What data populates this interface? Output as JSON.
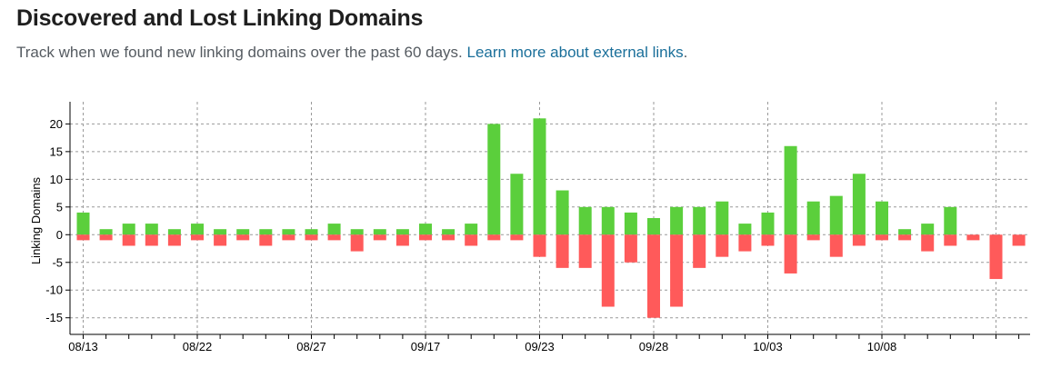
{
  "header": {
    "title": "Discovered and Lost Linking Domains",
    "subtitle_text": "Track when we found new linking domains over the past 60 days.",
    "learn_more_link": "Learn more about external links",
    "subtitle_end": "."
  },
  "colors": {
    "discovered": "#5bcf3c",
    "lost": "#ff5a5a",
    "grid": "#9a9a9a",
    "link": "#1a6f9a"
  },
  "chart_data": {
    "type": "bar",
    "ylabel": "Linking Domains",
    "ylim": [
      -18,
      24
    ],
    "yticks": [
      20,
      15,
      10,
      5,
      0,
      -5,
      -10,
      -15
    ],
    "x_tick_labels": [
      "08/13",
      "08/22",
      "08/27",
      "09/17",
      "09/23",
      "09/28",
      "10/03",
      "10/08"
    ],
    "grid": true,
    "series": [
      {
        "values": [
          4,
          1,
          2,
          2,
          1,
          2,
          1,
          1,
          1,
          1,
          1,
          2,
          1,
          1,
          1,
          2,
          1,
          2,
          20,
          11,
          21,
          8,
          5,
          5,
          4,
          3,
          5,
          5,
          6,
          2,
          4,
          16,
          6,
          7,
          11,
          6,
          1,
          2,
          5,
          0,
          0,
          0
        ]
      },
      {
        "values": [
          -1,
          -1,
          -2,
          -2,
          -2,
          -1,
          -2,
          -1,
          -2,
          -1,
          -1,
          -1,
          -3,
          -1,
          -2,
          -1,
          -1,
          -2,
          -1,
          -1,
          -4,
          -6,
          -6,
          -13,
          -5,
          -15,
          -13,
          -6,
          -4,
          -3,
          -2,
          -7,
          -1,
          -4,
          -2,
          -1,
          -1,
          -3,
          -2,
          -1,
          -8,
          -2
        ]
      }
    ]
  }
}
